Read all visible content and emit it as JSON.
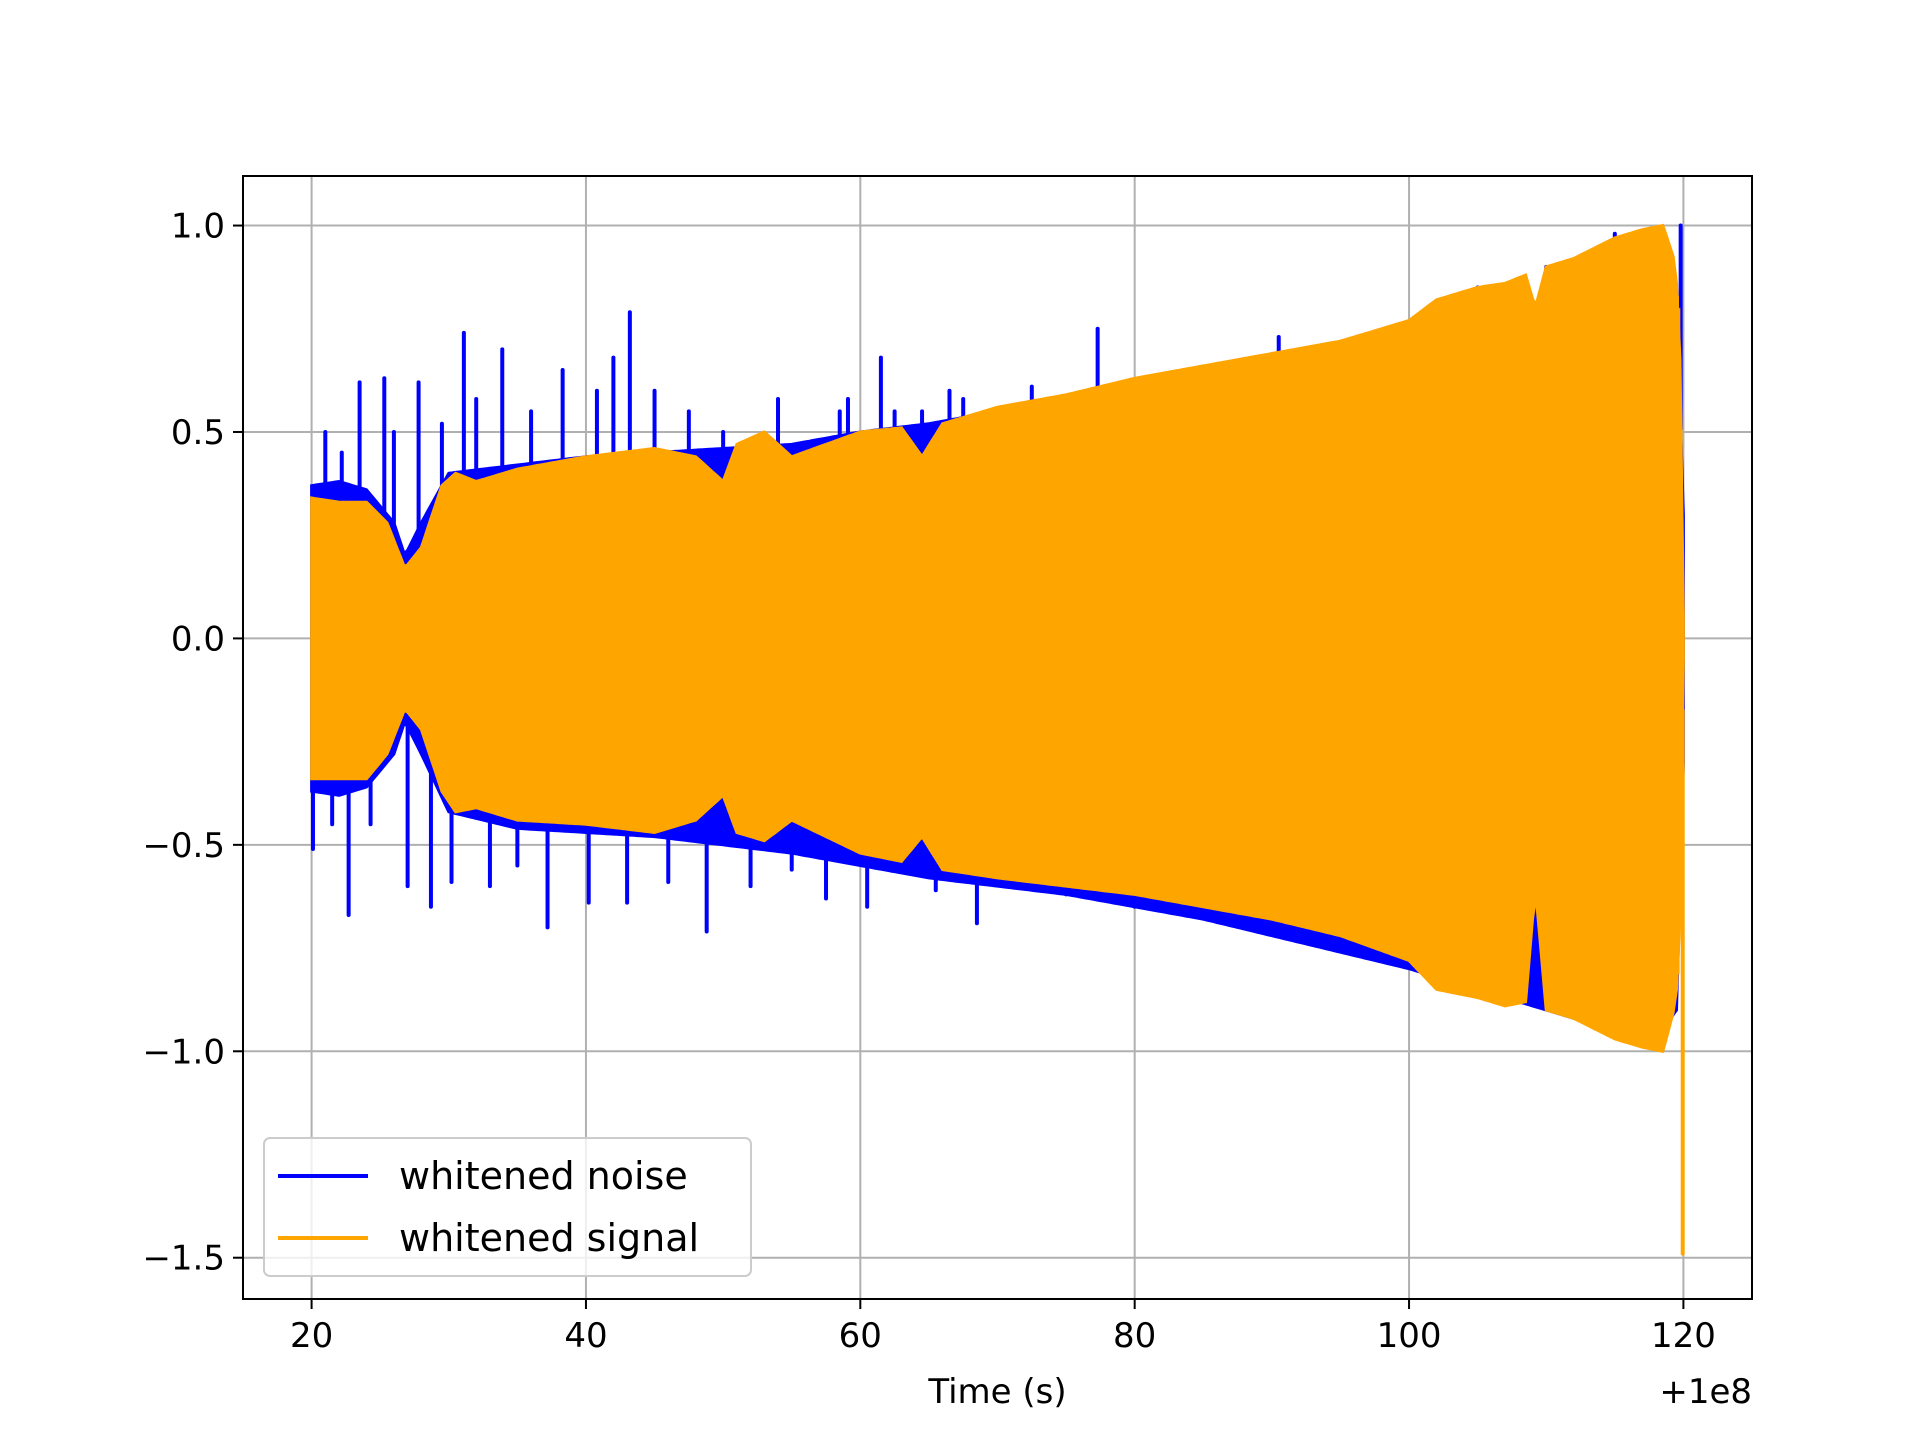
{
  "chart_data": {
    "type": "line",
    "title": "",
    "xlabel": "Time (s)",
    "ylabel": "",
    "x_offset_label": "+1e8",
    "xlim": [
      15,
      125
    ],
    "ylim": [
      -1.6,
      1.12
    ],
    "xticks": [
      20,
      40,
      60,
      80,
      100,
      120
    ],
    "xtick_labels": [
      "20",
      "40",
      "60",
      "80",
      "100",
      "120"
    ],
    "yticks": [
      -1.5,
      -1.0,
      -0.5,
      0.0,
      0.5,
      1.0
    ],
    "ytick_labels": [
      "−1.5",
      "−1.0",
      "−0.5",
      "0.0",
      "0.5",
      "1.0"
    ],
    "grid": true,
    "legend_position": "lower-left",
    "series": [
      {
        "name": "whitened noise",
        "color": "#0000ff",
        "x_range": [
          20,
          120
        ],
        "envelope_x": [
          20,
          22,
          24,
          26,
          26.8,
          28,
          30,
          35,
          40,
          45,
          50,
          55,
          60,
          65,
          70,
          75,
          80,
          85,
          90,
          95,
          100,
          105,
          110,
          115,
          118,
          119.5,
          120
        ],
        "envelope_upper": [
          0.37,
          0.38,
          0.36,
          0.28,
          0.2,
          0.28,
          0.4,
          0.42,
          0.44,
          0.45,
          0.46,
          0.47,
          0.5,
          0.52,
          0.55,
          0.57,
          0.6,
          0.63,
          0.66,
          0.7,
          0.74,
          0.78,
          0.82,
          0.88,
          0.92,
          0.82,
          0.3
        ],
        "envelope_lower": [
          -0.37,
          -0.38,
          -0.36,
          -0.28,
          -0.2,
          -0.28,
          -0.42,
          -0.46,
          -0.47,
          -0.48,
          -0.5,
          -0.52,
          -0.55,
          -0.58,
          -0.6,
          -0.62,
          -0.65,
          -0.68,
          -0.72,
          -0.76,
          -0.8,
          -0.85,
          -0.9,
          -0.95,
          -0.97,
          -0.9,
          -0.3
        ],
        "spikes": [
          {
            "x": 20.1,
            "y": -0.51
          },
          {
            "x": 21.0,
            "y": 0.5
          },
          {
            "x": 21.5,
            "y": -0.45
          },
          {
            "x": 22.2,
            "y": 0.45
          },
          {
            "x": 22.7,
            "y": -0.67
          },
          {
            "x": 23.5,
            "y": 0.62
          },
          {
            "x": 24.3,
            "y": -0.45
          },
          {
            "x": 25.3,
            "y": 0.63
          },
          {
            "x": 26.0,
            "y": 0.5
          },
          {
            "x": 27.0,
            "y": -0.6
          },
          {
            "x": 27.8,
            "y": 0.62
          },
          {
            "x": 28.7,
            "y": -0.65
          },
          {
            "x": 29.5,
            "y": 0.52
          },
          {
            "x": 30.2,
            "y": -0.59
          },
          {
            "x": 31.1,
            "y": 0.74
          },
          {
            "x": 32.0,
            "y": 0.58
          },
          {
            "x": 33.0,
            "y": -0.6
          },
          {
            "x": 33.9,
            "y": 0.7
          },
          {
            "x": 35.0,
            "y": -0.55
          },
          {
            "x": 36.0,
            "y": 0.55
          },
          {
            "x": 37.2,
            "y": -0.7
          },
          {
            "x": 38.3,
            "y": 0.65
          },
          {
            "x": 40.2,
            "y": -0.64
          },
          {
            "x": 40.8,
            "y": 0.6
          },
          {
            "x": 42.0,
            "y": 0.68
          },
          {
            "x": 43.0,
            "y": -0.64
          },
          {
            "x": 43.2,
            "y": 0.79
          },
          {
            "x": 45.0,
            "y": 0.6
          },
          {
            "x": 46.0,
            "y": -0.59
          },
          {
            "x": 47.5,
            "y": 0.55
          },
          {
            "x": 48.8,
            "y": -0.71
          },
          {
            "x": 50.0,
            "y": 0.5
          },
          {
            "x": 52.0,
            "y": -0.6
          },
          {
            "x": 54.0,
            "y": 0.58
          },
          {
            "x": 55.0,
            "y": -0.56
          },
          {
            "x": 57.5,
            "y": -0.63
          },
          {
            "x": 58.5,
            "y": 0.55
          },
          {
            "x": 59.1,
            "y": 0.58
          },
          {
            "x": 60.5,
            "y": -0.65
          },
          {
            "x": 61.5,
            "y": 0.68
          },
          {
            "x": 62.5,
            "y": 0.55
          },
          {
            "x": 64.5,
            "y": 0.55
          },
          {
            "x": 65.5,
            "y": -0.61
          },
          {
            "x": 66.5,
            "y": 0.6
          },
          {
            "x": 67.5,
            "y": 0.58
          },
          {
            "x": 68.5,
            "y": -0.69
          },
          {
            "x": 72.5,
            "y": 0.61
          },
          {
            "x": 75.0,
            "y": -0.59
          },
          {
            "x": 77.3,
            "y": 0.75
          },
          {
            "x": 79.0,
            "y": 0.61
          },
          {
            "x": 80.0,
            "y": -0.62
          },
          {
            "x": 90.5,
            "y": 0.73
          },
          {
            "x": 100.0,
            "y": 0.75
          },
          {
            "x": 105.0,
            "y": 0.85
          },
          {
            "x": 110.0,
            "y": 0.9
          },
          {
            "x": 115.0,
            "y": 0.98
          },
          {
            "x": 119.8,
            "y": 1.0
          }
        ]
      },
      {
        "name": "whitened signal",
        "color": "#ffa500",
        "x_range": [
          20,
          120
        ],
        "envelope_x": [
          20,
          22,
          24,
          25.5,
          26.8,
          28,
          29.5,
          30.5,
          32,
          35,
          40,
          45,
          48,
          50,
          51,
          53,
          55,
          60,
          63,
          64.5,
          66,
          70,
          75,
          80,
          85,
          90,
          95,
          100,
          102,
          105,
          107,
          108.5,
          109.2,
          110,
          112,
          115,
          117,
          118.5,
          119.3,
          119.7,
          120
        ],
        "envelope_upper": [
          0.34,
          0.33,
          0.33,
          0.28,
          0.17,
          0.22,
          0.37,
          0.4,
          0.38,
          0.41,
          0.44,
          0.46,
          0.44,
          0.38,
          0.47,
          0.5,
          0.44,
          0.5,
          0.51,
          0.44,
          0.52,
          0.56,
          0.59,
          0.63,
          0.66,
          0.69,
          0.72,
          0.77,
          0.82,
          0.85,
          0.86,
          0.88,
          0.8,
          0.9,
          0.92,
          0.97,
          0.99,
          1.0,
          0.92,
          0.8,
          0.05
        ],
        "envelope_lower": [
          -0.34,
          -0.34,
          -0.34,
          -0.28,
          -0.17,
          -0.22,
          -0.37,
          -0.42,
          -0.41,
          -0.44,
          -0.45,
          -0.47,
          -0.44,
          -0.38,
          -0.47,
          -0.49,
          -0.44,
          -0.52,
          -0.54,
          -0.48,
          -0.56,
          -0.58,
          -0.6,
          -0.62,
          -0.65,
          -0.68,
          -0.72,
          -0.78,
          -0.85,
          -0.87,
          -0.89,
          -0.88,
          -0.6,
          -0.9,
          -0.92,
          -0.97,
          -0.99,
          -1.0,
          -0.9,
          -0.8,
          -0.05
        ],
        "spikes": [
          {
            "x": 119.95,
            "y": -1.49
          }
        ]
      }
    ]
  }
}
